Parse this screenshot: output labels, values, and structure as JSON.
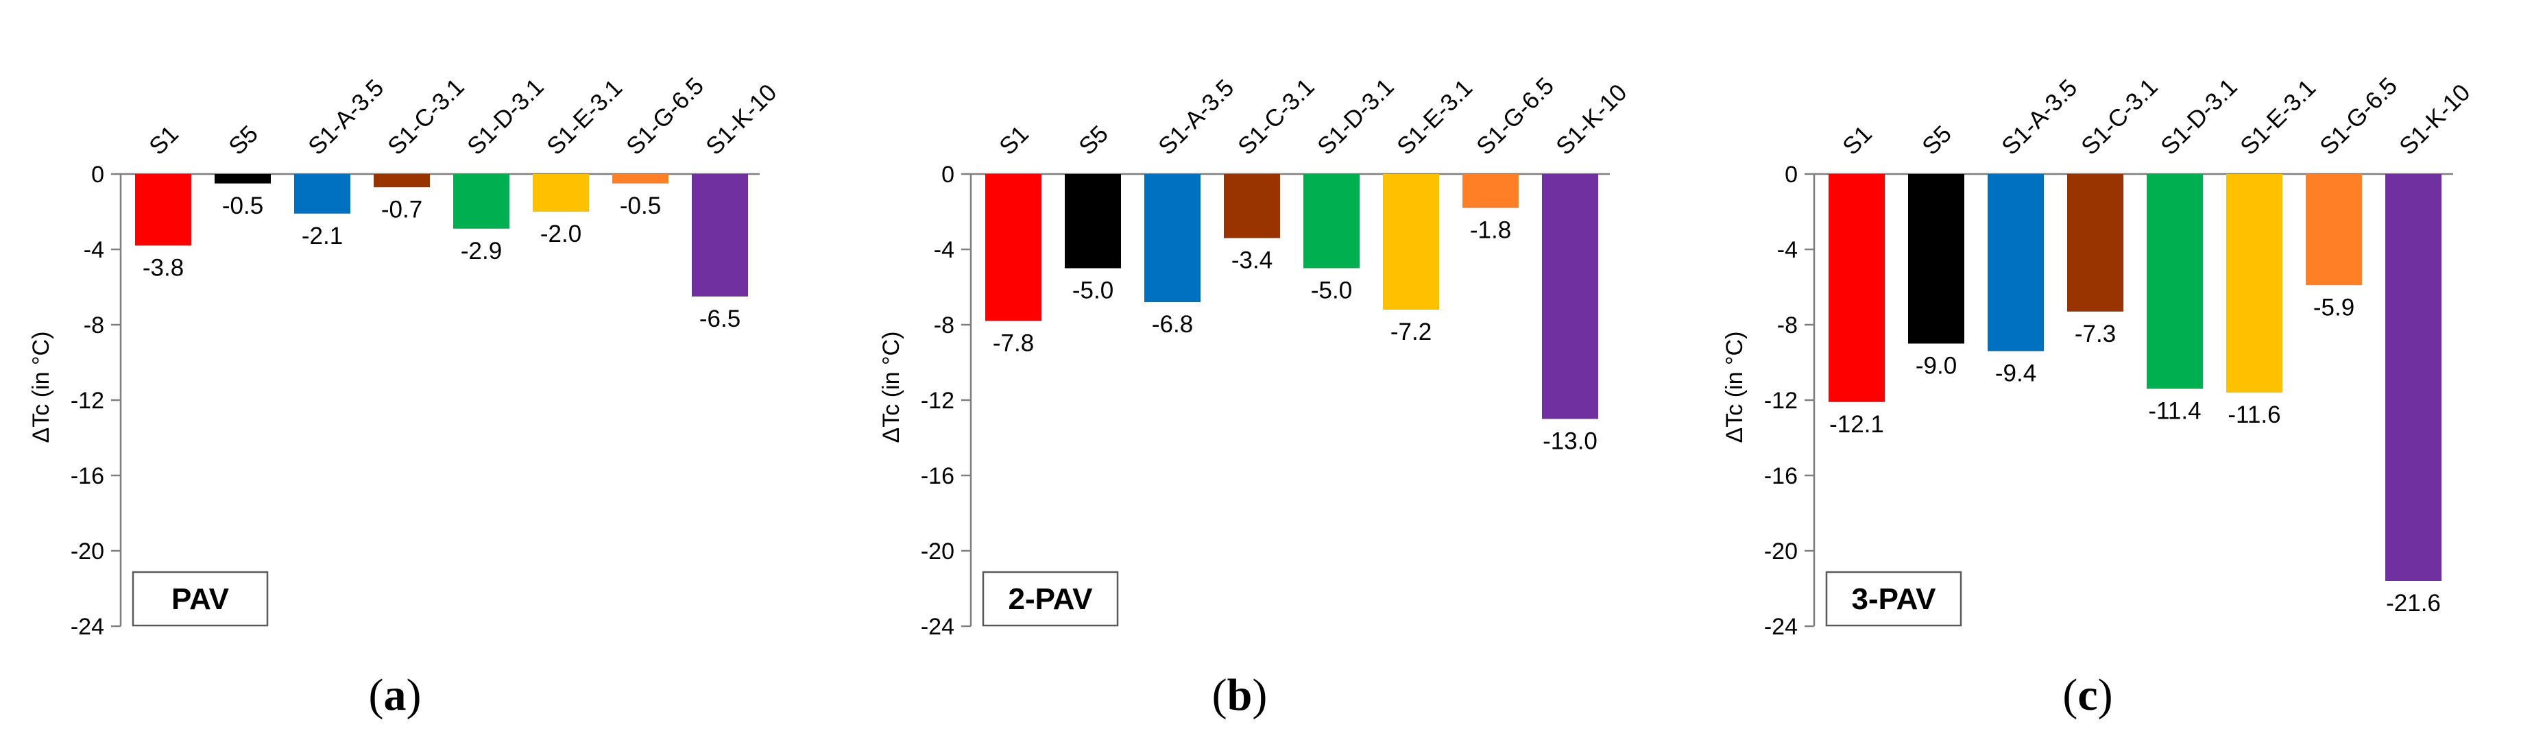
{
  "figure": {
    "captions": [
      {
        "open": "(",
        "letter": "a",
        "close": ")"
      },
      {
        "open": "(",
        "letter": "b",
        "close": ")"
      },
      {
        "open": "(",
        "letter": "c",
        "close": ")"
      }
    ]
  },
  "chart_data": [
    {
      "type": "bar",
      "title": "PAV",
      "ylabel": "ΔTc (in °C)",
      "xlabel": "",
      "ylim": [
        -24,
        0
      ],
      "yticks": [
        0,
        -4,
        -8,
        -12,
        -16,
        -20,
        -24
      ],
      "grid": false,
      "categories": [
        "S1",
        "S5",
        "S1-A-3.5",
        "S1-C-3.1",
        "S1-D-3.1",
        "S1-E-3.1",
        "S1-G-6.5",
        "S1-K-10"
      ],
      "values": [
        -3.8,
        -0.5,
        -2.1,
        -0.7,
        -2.9,
        -2.0,
        -0.5,
        -6.5
      ],
      "value_labels": [
        "-3.8",
        "-0.5",
        "-2.1",
        "-0.7",
        "-2.9",
        "-2.0",
        "-0.5",
        "-6.5"
      ],
      "colors": [
        "#ff0000",
        "#000000",
        "#0070c0",
        "#993300",
        "#00b050",
        "#ffc000",
        "#ff7f27",
        "#7030a0"
      ]
    },
    {
      "type": "bar",
      "title": "2-PAV",
      "ylabel": "ΔTc (in °C)",
      "xlabel": "",
      "ylim": [
        -24,
        0
      ],
      "yticks": [
        0,
        -4,
        -8,
        -12,
        -16,
        -20,
        -24
      ],
      "grid": false,
      "categories": [
        "S1",
        "S5",
        "S1-A-3.5",
        "S1-C-3.1",
        "S1-D-3.1",
        "S1-E-3.1",
        "S1-G-6.5",
        "S1-K-10"
      ],
      "values": [
        -7.8,
        -5.0,
        -6.8,
        -3.4,
        -5.0,
        -7.2,
        -1.8,
        -13.0
      ],
      "value_labels": [
        "-7.8",
        "-5.0",
        "-6.8",
        "-3.4",
        "-5.0",
        "-7.2",
        "-1.8",
        "-13.0"
      ],
      "colors": [
        "#ff0000",
        "#000000",
        "#0070c0",
        "#993300",
        "#00b050",
        "#ffc000",
        "#ff7f27",
        "#7030a0"
      ]
    },
    {
      "type": "bar",
      "title": "3-PAV",
      "ylabel": "ΔTc (in °C)",
      "xlabel": "",
      "ylim": [
        -24,
        0
      ],
      "yticks": [
        0,
        -4,
        -8,
        -12,
        -16,
        -20,
        -24
      ],
      "grid": false,
      "categories": [
        "S1",
        "S5",
        "S1-A-3.5",
        "S1-C-3.1",
        "S1-D-3.1",
        "S1-E-3.1",
        "S1-G-6.5",
        "S1-K-10"
      ],
      "values": [
        -12.1,
        -9.0,
        -9.4,
        -7.3,
        -11.4,
        -11.6,
        -5.9,
        -21.6
      ],
      "value_labels": [
        "-12.1",
        "-9.0",
        "-9.4",
        "-7.3",
        "-11.4",
        "-11.6",
        "-5.9",
        "-21.6"
      ],
      "colors": [
        "#ff0000",
        "#000000",
        "#0070c0",
        "#993300",
        "#00b050",
        "#ffc000",
        "#ff7f27",
        "#7030a0"
      ]
    }
  ]
}
